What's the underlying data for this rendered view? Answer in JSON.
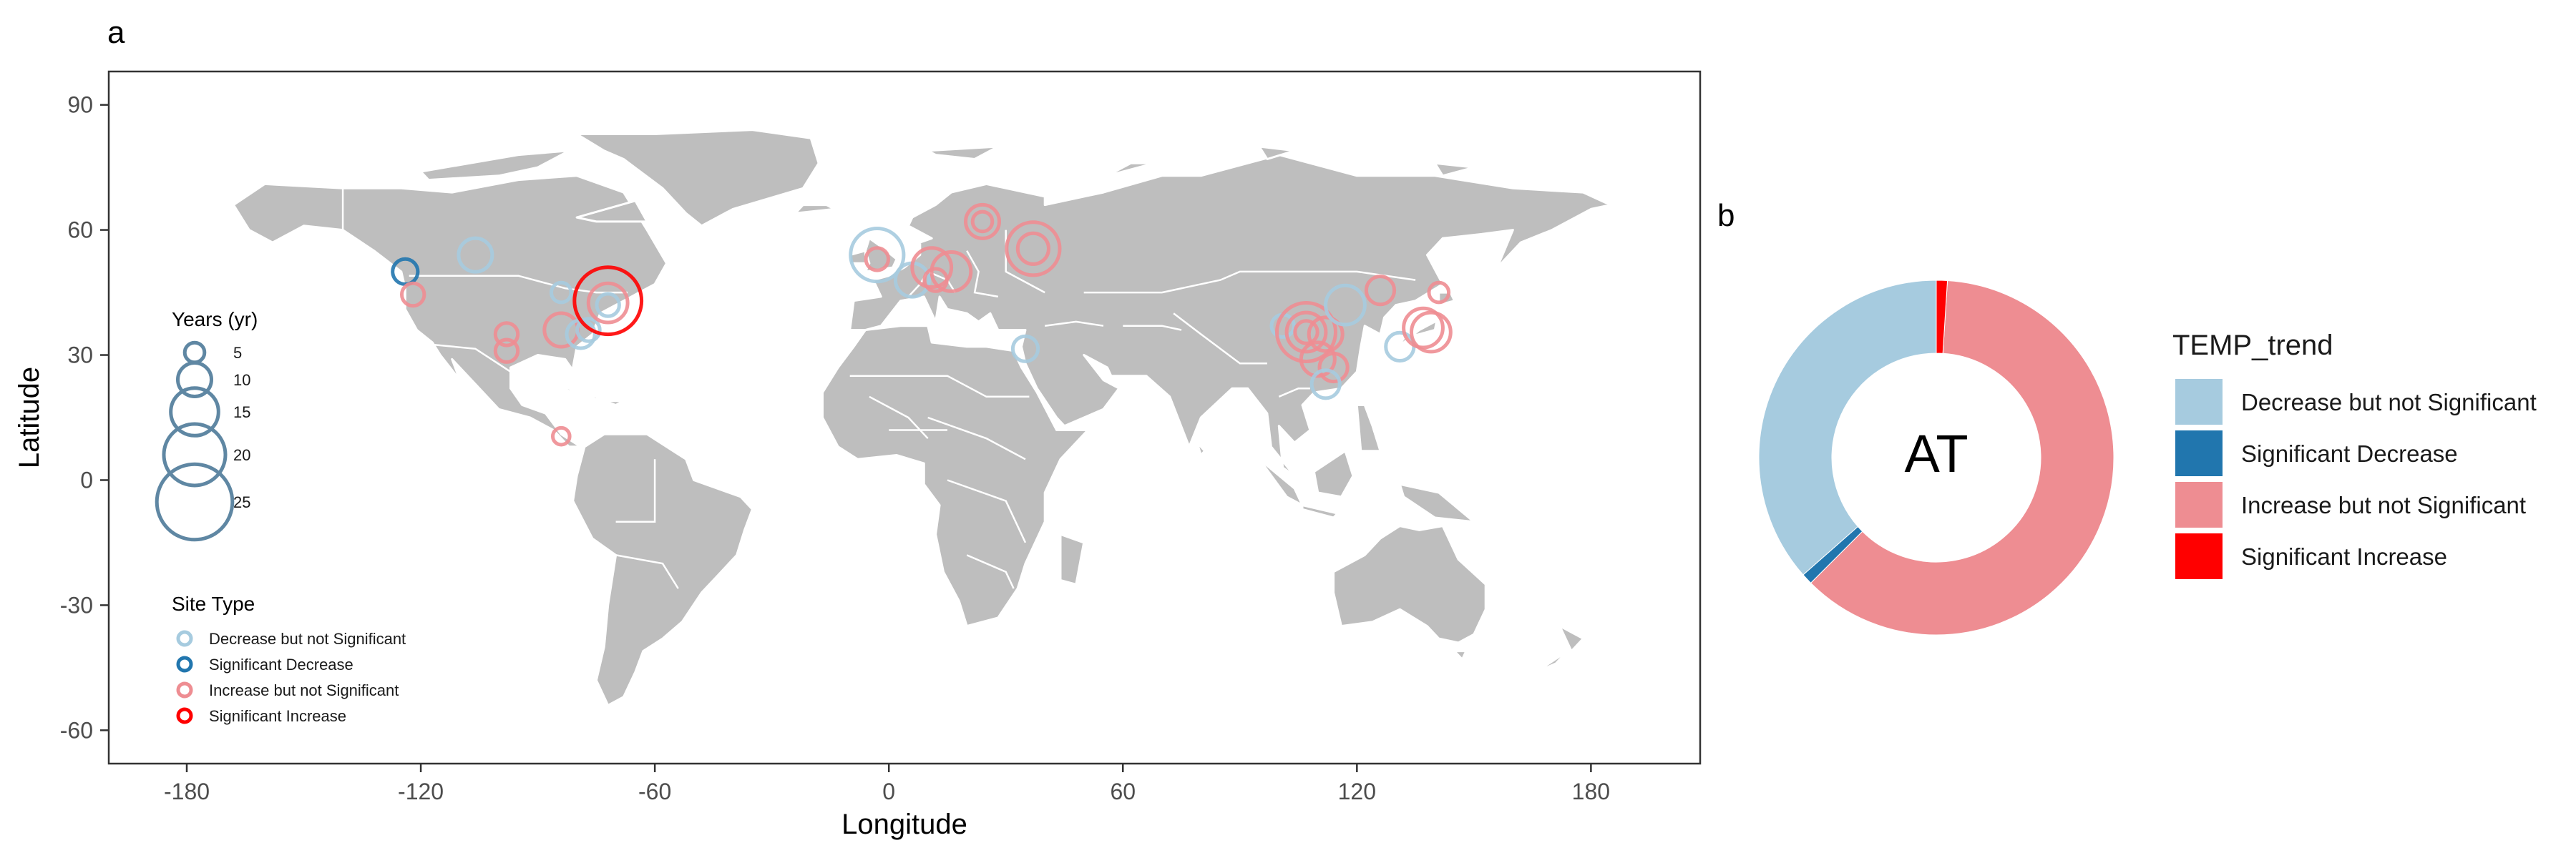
{
  "panel_a_label": "a",
  "panel_b_label": "b",
  "colors": {
    "decrease_ns": "#a6cbdf",
    "decrease_sig": "#2176ae",
    "increase_ns": "#ee8d92",
    "increase_sig": "#ff0000",
    "land": "#bebebe",
    "size_legend_stroke": "#5f87a3",
    "axis": "#4d4d4d"
  },
  "chart_data": [
    {
      "type": "scatter",
      "subtype": "map-bubble",
      "xlabel": "Longitude",
      "ylabel": "Latitude",
      "xlim": [
        -200,
        208
      ],
      "ylim": [
        -68,
        98
      ],
      "xticks": [
        -180,
        -120,
        -60,
        0,
        60,
        120,
        180
      ],
      "yticks": [
        -60,
        -30,
        0,
        30,
        60,
        90
      ],
      "grid": false,
      "size_legend": {
        "title": "Years (yr)",
        "entries": [
          5,
          10,
          15,
          20,
          25
        ]
      },
      "type_legend": {
        "title": "Site Type",
        "entries": [
          {
            "label": "Decrease but not Significant",
            "color": "#a6cbdf"
          },
          {
            "label": "Significant Decrease",
            "color": "#2176ae"
          },
          {
            "label": "Increase but not Significant",
            "color": "#ee8d92"
          },
          {
            "label": "Significant Increase",
            "color": "#ff0000"
          }
        ]
      },
      "points": [
        {
          "lon": -124,
          "lat": 50,
          "years": 7,
          "type": "Significant Decrease"
        },
        {
          "lon": -106,
          "lat": 54,
          "years": 10,
          "type": "Decrease but not Significant"
        },
        {
          "lon": -122,
          "lat": 44.5,
          "years": 6,
          "type": "Increase but not Significant"
        },
        {
          "lon": -98,
          "lat": 35,
          "years": 6,
          "type": "Increase but not Significant"
        },
        {
          "lon": -98,
          "lat": 31,
          "years": 6,
          "type": "Increase but not Significant"
        },
        {
          "lon": -84,
          "lat": 36,
          "years": 10,
          "type": "Increase but not Significant"
        },
        {
          "lon": -84,
          "lat": 45,
          "years": 5,
          "type": "Decrease but not Significant"
        },
        {
          "lon": -79,
          "lat": 35,
          "years": 8,
          "type": "Decrease but not Significant"
        },
        {
          "lon": -77,
          "lat": 36,
          "years": 6,
          "type": "Decrease but not Significant"
        },
        {
          "lon": -72,
          "lat": 43,
          "years": 22,
          "type": "Significant Increase"
        },
        {
          "lon": -72,
          "lat": 42.5,
          "years": 12,
          "type": "Increase but not Significant"
        },
        {
          "lon": -72,
          "lat": 42,
          "years": 6,
          "type": "Decrease but not Significant"
        },
        {
          "lon": -84,
          "lat": 10.5,
          "years": 4,
          "type": "Increase but not Significant"
        },
        {
          "lon": -3,
          "lat": 54,
          "years": 17,
          "type": "Decrease but not Significant"
        },
        {
          "lon": -3,
          "lat": 53,
          "years": 6,
          "type": "Increase but not Significant"
        },
        {
          "lon": 6,
          "lat": 48,
          "years": 10,
          "type": "Decrease but not Significant"
        },
        {
          "lon": 11,
          "lat": 51,
          "years": 12,
          "type": "Increase but not Significant"
        },
        {
          "lon": 12,
          "lat": 48,
          "years": 6,
          "type": "Increase but not Significant"
        },
        {
          "lon": 16,
          "lat": 50,
          "years": 12,
          "type": "Increase but not Significant"
        },
        {
          "lon": 24,
          "lat": 62,
          "years": 10,
          "type": "Increase but not Significant"
        },
        {
          "lon": 24,
          "lat": 62,
          "years": 5,
          "type": "Increase but not Significant"
        },
        {
          "lon": 37,
          "lat": 55.5,
          "years": 17,
          "type": "Increase but not Significant"
        },
        {
          "lon": 37,
          "lat": 55.5,
          "years": 9,
          "type": "Increase but not Significant"
        },
        {
          "lon": 35,
          "lat": 31.5,
          "years": 7,
          "type": "Decrease but not Significant"
        },
        {
          "lon": 101,
          "lat": 37,
          "years": 6,
          "type": "Decrease but not Significant"
        },
        {
          "lon": 107,
          "lat": 35.5,
          "years": 19,
          "type": "Increase but not Significant"
        },
        {
          "lon": 107,
          "lat": 35.5,
          "years": 12,
          "type": "Increase but not Significant"
        },
        {
          "lon": 107,
          "lat": 35.5,
          "years": 6,
          "type": "Increase but not Significant"
        },
        {
          "lon": 112,
          "lat": 35,
          "years": 10,
          "type": "Increase but not Significant"
        },
        {
          "lon": 110,
          "lat": 29,
          "years": 10,
          "type": "Increase but not Significant"
        },
        {
          "lon": 114,
          "lat": 27,
          "years": 8,
          "type": "Increase but not Significant"
        },
        {
          "lon": 112,
          "lat": 23,
          "years": 8,
          "type": "Decrease but not Significant"
        },
        {
          "lon": 117,
          "lat": 42,
          "years": 12,
          "type": "Decrease but not Significant"
        },
        {
          "lon": 126,
          "lat": 45.5,
          "years": 8,
          "type": "Increase but not Significant"
        },
        {
          "lon": 131,
          "lat": 32,
          "years": 8,
          "type": "Decrease but not Significant"
        },
        {
          "lon": 137,
          "lat": 36.5,
          "years": 12,
          "type": "Increase but not Significant"
        },
        {
          "lon": 139,
          "lat": 35.5,
          "years": 12,
          "type": "Increase but not Significant"
        },
        {
          "lon": 141,
          "lat": 45,
          "years": 5,
          "type": "Increase but not Significant"
        }
      ]
    },
    {
      "type": "pie",
      "subtype": "donut",
      "center_label": "AT",
      "legend_title": "TEMP_trend",
      "categories": [
        "Decrease but not Significant",
        "Significant Decrease",
        "Increase but not Significant",
        "Significant Increase"
      ],
      "values": [
        36.5,
        1.0,
        61.5,
        1.0
      ],
      "unit": "percent",
      "colors": [
        "#a6cbdf",
        "#2176ae",
        "#ee8d92",
        "#ff0000"
      ],
      "start_angle_deg": 0,
      "direction": "counterclockwise",
      "legend_position": "right"
    }
  ]
}
